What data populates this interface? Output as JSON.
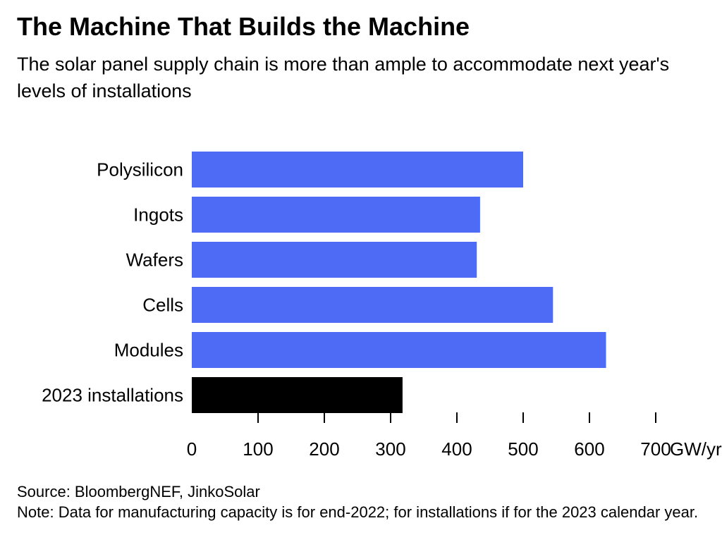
{
  "title": "The Machine That Builds the Machine",
  "subtitle": "The solar panel supply chain is more than ample to accommodate next year's levels of installations",
  "source": "Source: BloombergNEF, JinkoSolar",
  "note": "Note: Data for manufacturing capacity is for end-2022; for installations if for the 2023 calendar year.",
  "colors": {
    "capacity": "#4d6bf5",
    "installations": "#000000"
  },
  "chart_data": {
    "type": "bar",
    "orientation": "horizontal",
    "categories": [
      "Polysilicon",
      "Ingots",
      "Wafers",
      "Cells",
      "Modules",
      "2023 installations"
    ],
    "values": [
      500,
      435,
      430,
      545,
      625,
      318
    ],
    "xlim": [
      0,
      700
    ],
    "xticks": [
      0,
      100,
      200,
      300,
      400,
      500,
      600,
      700
    ],
    "tick_labels": [
      "0",
      "100",
      "200",
      "300",
      "400",
      "500",
      "600",
      "700"
    ],
    "unit_label": "GW/yr",
    "grid": false,
    "legend": "none"
  }
}
